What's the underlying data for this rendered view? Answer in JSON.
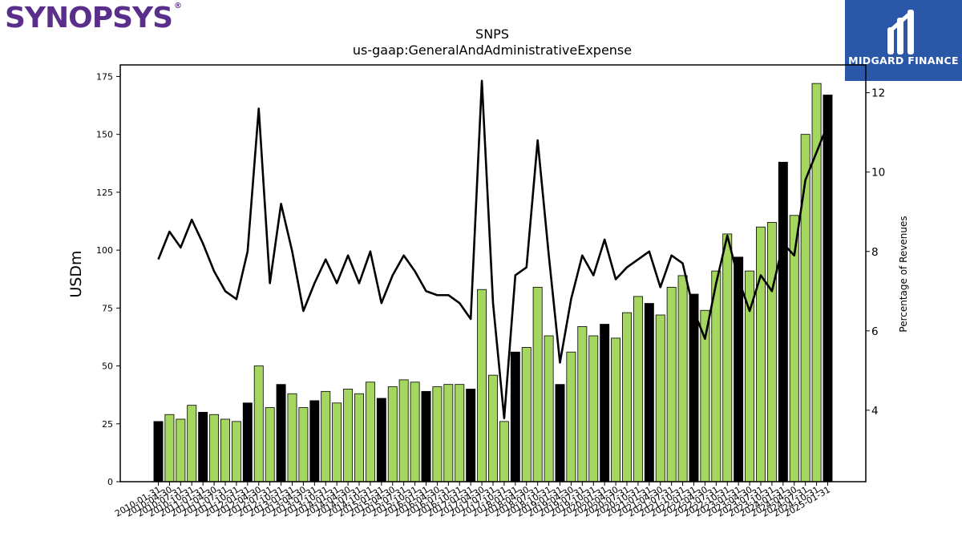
{
  "brand": {
    "name": "SYNOPSYS",
    "registered": "®",
    "color": "#5a2f8c"
  },
  "badge": {
    "name": "MIDGARD FINANCE",
    "background": "#2b57a8"
  },
  "chart_data": {
    "type": "bar",
    "title": "SNPS",
    "subtitle": "us-gaap:GeneralAndAdministrativeExpense",
    "ylabel": "USDm",
    "y2label": "Percentage of Revenues",
    "ylim": [
      0,
      180
    ],
    "y2lim": [
      2.2,
      12.7
    ],
    "yticks": [
      0,
      25,
      50,
      75,
      100,
      125,
      150,
      175
    ],
    "y2ticks": [
      4,
      6,
      8,
      10,
      12
    ],
    "colors": {
      "quarter": "#a5d65f",
      "fiscal_year_end": "#000000",
      "line": "#000000"
    },
    "x_tick_labels": [
      "2010-01-31",
      "2010-04-30",
      "2010-07-31",
      "2010-10-31",
      "2011-01-31",
      "2011-04-30",
      "2011-07-31",
      "2011-10-31",
      "2012-01-31",
      "2012-04-30",
      "2012-07-31",
      "2012-10-31",
      "2013-01-31",
      "2013-04-30",
      "2013-07-31",
      "2013-10-31",
      "2014-01-31",
      "2014-04-30",
      "2014-07-31",
      "2014-10-31",
      "2015-01-31",
      "2015-04-30",
      "2015-07-31",
      "2015-10-31",
      "2016-01-31",
      "2016-04-30",
      "2016-07-31",
      "2016-10-31",
      "2017-01-31",
      "2017-04-30",
      "2017-07-31",
      "2017-10-31",
      "2018-01-31",
      "2018-04-30",
      "2018-07-31",
      "2018-10-31",
      "2019-01-31",
      "2019-04-30",
      "2019-07-31",
      "2019-10-31",
      "2020-01-31",
      "2020-04-30",
      "2020-07-31",
      "2020-10-31",
      "2021-01-31",
      "2021-04-30",
      "2021-07-31",
      "2021-10-31",
      "2022-01-31",
      "2022-04-30",
      "2022-07-31",
      "2022-10-31",
      "2023-01-31",
      "2023-04-30",
      "2023-07-31",
      "2023-10-31",
      "2024-01-31",
      "2024-04-30",
      "2024-07-31",
      "2024-10-31",
      "2025-01-31"
    ],
    "bars": [
      26,
      29,
      27,
      33,
      30,
      29,
      27,
      26,
      34,
      50,
      32,
      42,
      38,
      32,
      35,
      39,
      34,
      40,
      38,
      43,
      36,
      41,
      44,
      43,
      39,
      41,
      42,
      42,
      40,
      83,
      46,
      26,
      56,
      58,
      84,
      63,
      42,
      56,
      67,
      63,
      68,
      62,
      73,
      80,
      77,
      72,
      84,
      89,
      81,
      74,
      91,
      107,
      97,
      91,
      110,
      112,
      138,
      115,
      150,
      172,
      167
    ],
    "fiscal_year_end": [
      true,
      false,
      false,
      false,
      true,
      false,
      false,
      false,
      true,
      false,
      false,
      true,
      false,
      false,
      true,
      false,
      false,
      false,
      false,
      false,
      true,
      false,
      false,
      false,
      true,
      false,
      false,
      false,
      true,
      false,
      false,
      false,
      true,
      false,
      false,
      false,
      true,
      false,
      false,
      false,
      true,
      false,
      false,
      false,
      true,
      false,
      false,
      false,
      true,
      false,
      false,
      false,
      true,
      false,
      false,
      false,
      true,
      false,
      false,
      false,
      true
    ],
    "pct_of_revenue": [
      7.8,
      8.5,
      8.1,
      8.8,
      8.2,
      7.5,
      7.0,
      6.8,
      8.0,
      11.6,
      7.2,
      9.2,
      8.0,
      6.5,
      7.2,
      7.8,
      7.2,
      7.9,
      7.2,
      8.0,
      6.7,
      7.4,
      7.9,
      7.5,
      7.0,
      6.9,
      6.9,
      6.7,
      6.3,
      12.3,
      6.7,
      3.8,
      7.4,
      7.6,
      10.8,
      7.9,
      5.2,
      6.8,
      7.9,
      7.4,
      8.3,
      7.3,
      7.6,
      7.8,
      8.0,
      7.1,
      7.9,
      7.7,
      6.5,
      5.8,
      7.2,
      8.4,
      7.3,
      6.5,
      7.4,
      7.0,
      8.2,
      7.9,
      9.8,
      10.5,
      11.2
    ]
  }
}
